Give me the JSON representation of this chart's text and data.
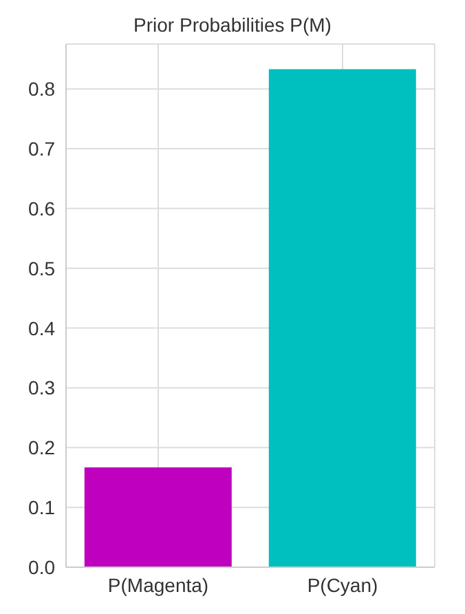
{
  "chart_data": {
    "type": "bar",
    "title": "Prior Probabilities P(M)",
    "categories": [
      "P(Magenta)",
      "P(Cyan)"
    ],
    "values": [
      0.167,
      0.833
    ],
    "colors": [
      "#bf00bf",
      "#00bfbf"
    ],
    "ylim": [
      0,
      0.875
    ],
    "yticks": [
      {
        "value": 0,
        "label": "0.0"
      },
      0.1,
      0.2,
      0.3,
      0.4,
      0.5,
      0.6,
      0.7,
      0.8
    ],
    "grid": true
  }
}
